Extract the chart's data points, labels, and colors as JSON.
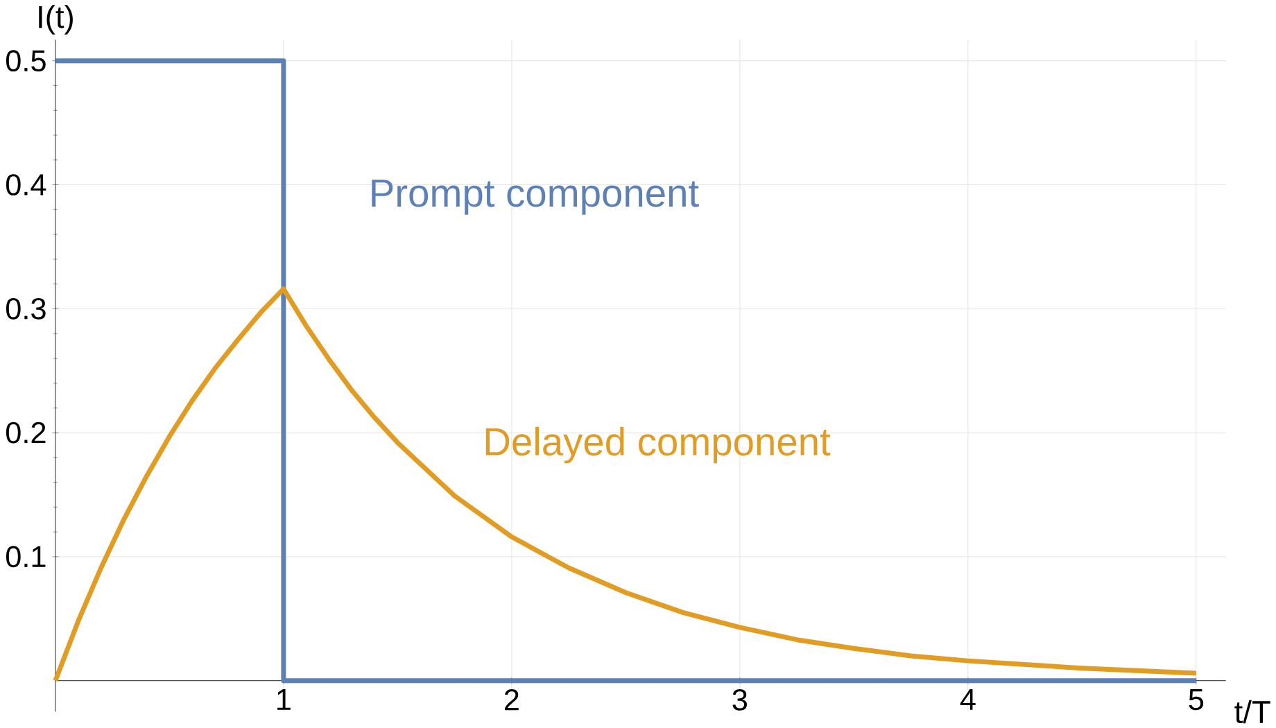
{
  "chart_data": {
    "type": "line",
    "xlabel": "t/T",
    "ylabel": "I(t)",
    "xlim": [
      0,
      5.13
    ],
    "ylim": [
      -0.025,
      0.517
    ],
    "xticks": [
      1,
      2,
      3,
      4,
      5
    ],
    "yticks": [
      0.1,
      0.2,
      0.3,
      0.4,
      0.5
    ],
    "grid": true,
    "series": [
      {
        "name": "Prompt component",
        "type": "step",
        "color": "#5e81b5",
        "x": [
          0,
          1,
          5
        ],
        "values": [
          0.5,
          0,
          0
        ]
      },
      {
        "name": "Delayed component",
        "color": "#e19c24",
        "x": [
          0,
          0.1,
          0.2,
          0.3,
          0.4,
          0.5,
          0.6,
          0.7,
          0.8,
          0.9,
          1,
          1.1,
          1.2,
          1.3,
          1.4,
          1.5,
          1.75,
          2,
          2.25,
          2.5,
          2.75,
          3,
          3.25,
          3.5,
          3.75,
          4,
          4.5,
          5
        ],
        "values": [
          0,
          0.048,
          0.091,
          0.13,
          0.165,
          0.197,
          0.226,
          0.252,
          0.275,
          0.297,
          0.316,
          0.286,
          0.259,
          0.234,
          0.212,
          0.192,
          0.149,
          0.116,
          0.091,
          0.071,
          0.055,
          0.043,
          0.033,
          0.026,
          0.02,
          0.016,
          0.01,
          0.006
        ]
      }
    ]
  }
}
